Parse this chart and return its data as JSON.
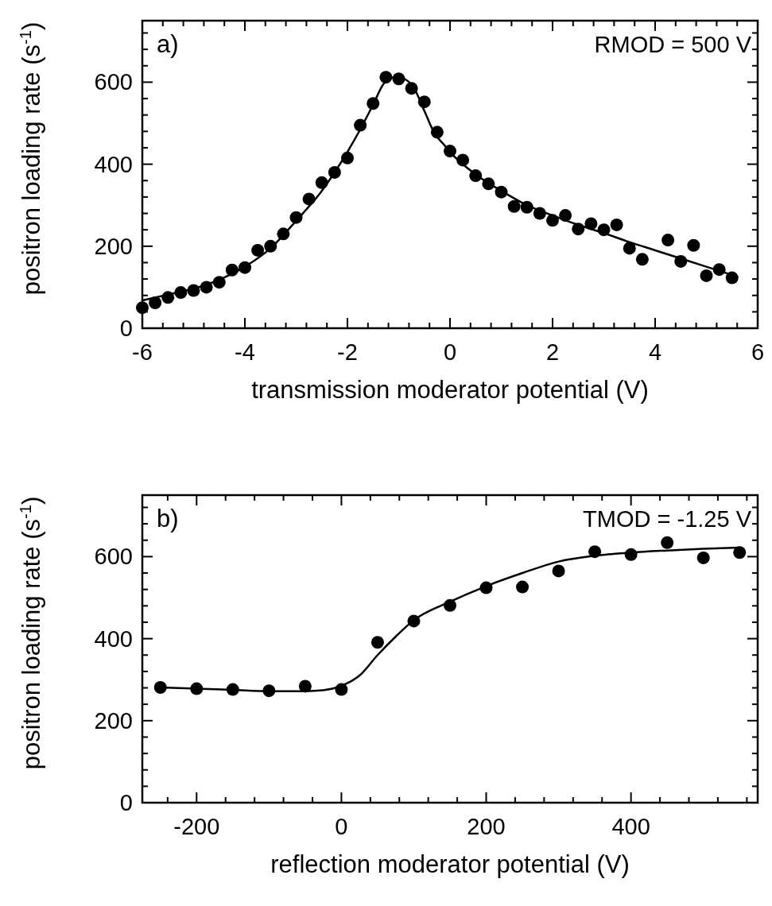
{
  "chart_data": [
    {
      "type": "scatter",
      "xlabel": "transmission moderator potential (V)",
      "ylabel": "positron loading rate (s$^{-1}$)",
      "annotations": [
        "a)",
        "RMOD = 500 V"
      ],
      "marker": "circle",
      "grid": false,
      "xlim": [
        -6,
        6
      ],
      "ylim": [
        0,
        750
      ],
      "xticks": [
        -6,
        {
          "value": -5.6,
          "label": null
        },
        {
          "value": -5.2,
          "label": null
        },
        {
          "value": -4.8,
          "label": null
        },
        {
          "value": -4.4,
          "label": null
        },
        -4,
        {
          "value": -3.6,
          "label": null
        },
        {
          "value": -3.2,
          "label": null
        },
        {
          "value": -2.8,
          "label": null
        },
        {
          "value": -2.4,
          "label": null
        },
        -2,
        {
          "value": -1.6,
          "label": null
        },
        {
          "value": -1.2,
          "label": null
        },
        {
          "value": -0.8,
          "label": null
        },
        {
          "value": -0.4,
          "label": null
        },
        0,
        {
          "value": 0.4,
          "label": null
        },
        {
          "value": 0.8,
          "label": null
        },
        {
          "value": 1.2,
          "label": null
        },
        {
          "value": 1.6,
          "label": null
        },
        2,
        {
          "value": 2.4,
          "label": null
        },
        {
          "value": 2.8,
          "label": null
        },
        {
          "value": 3.2,
          "label": null
        },
        {
          "value": 3.6,
          "label": null
        },
        4,
        {
          "value": 4.4,
          "label": null
        },
        {
          "value": 4.8,
          "label": null
        },
        {
          "value": 5.2,
          "label": null
        },
        {
          "value": 5.6,
          "label": null
        },
        6
      ],
      "yticks": [
        0,
        {
          "value": 40,
          "label": null
        },
        {
          "value": 80,
          "label": null
        },
        {
          "value": 120,
          "label": null
        },
        {
          "value": 160,
          "label": null
        },
        200,
        {
          "value": 240,
          "label": null
        },
        {
          "value": 280,
          "label": null
        },
        {
          "value": 320,
          "label": null
        },
        {
          "value": 360,
          "label": null
        },
        400,
        {
          "value": 440,
          "label": null
        },
        {
          "value": 480,
          "label": null
        },
        {
          "value": 520,
          "label": null
        },
        {
          "value": 560,
          "label": null
        },
        600,
        {
          "value": 640,
          "label": null
        },
        {
          "value": 680,
          "label": null
        },
        {
          "value": 720,
          "label": null
        }
      ],
      "series": [
        {
          "color": "#000000",
          "x": [
            -6,
            -5.75,
            -5.5,
            -5.25,
            -5,
            -4.75,
            -4.5,
            -4.25,
            -4,
            -3.75,
            -3.5,
            -3.25,
            -3,
            -2.75,
            -2.5,
            -2.25,
            -2,
            -1.75,
            -1.5,
            -1.25,
            -1,
            -0.75,
            -0.5,
            -0.25,
            0,
            0.25,
            0.5,
            0.75,
            1,
            1.25,
            1.5,
            1.75,
            2,
            2.25,
            2.5,
            2.75,
            3,
            3.25,
            3.5,
            3.75,
            4.25,
            4.5,
            4.75,
            5,
            5.25,
            5.5
          ],
          "values": [
            50,
            62,
            75,
            87,
            92,
            100,
            112,
            142,
            148,
            190,
            200,
            230,
            270,
            315,
            355,
            380,
            415,
            495,
            548,
            612,
            608,
            585,
            552,
            478,
            432,
            410,
            372,
            352,
            332,
            297,
            295,
            280,
            263,
            275,
            242,
            255,
            240,
            252,
            195,
            168,
            215,
            163,
            202,
            128,
            143,
            123
          ]
        },
        {
          "type": "line",
          "color": "#000000",
          "marker": "none",
          "line_style": "solid",
          "x": [
            -6,
            -5.5,
            -5,
            -4.5,
            -4,
            -3.5,
            -3,
            -2.5,
            -2,
            -1.75,
            -1.5,
            -1.3,
            -1.1,
            -0.9,
            -0.7,
            -0.5,
            -0.3,
            -0.1,
            0,
            0.5,
            1,
            1.5,
            2,
            2.5,
            3,
            3.5,
            4,
            4.5,
            5,
            5.5
          ],
          "values": [
            68,
            82,
            97,
            118,
            150,
            195,
            262,
            335,
            430,
            485,
            545,
            595,
            612,
            608,
            585,
            530,
            475,
            445,
            430,
            375,
            335,
            300,
            275,
            252,
            232,
            210,
            190,
            170,
            150,
            130
          ]
        }
      ]
    },
    {
      "type": "scatter",
      "xlabel": "reflection moderator potential (V)",
      "ylabel": "positron loading rate (s$^{-1}$)",
      "annotations": [
        "b)",
        "TMOD = -1.25 V"
      ],
      "marker": "circle",
      "grid": false,
      "xlim": [
        -275,
        575
      ],
      "ylim": [
        0,
        750
      ],
      "xticks": [
        {
          "value": -240,
          "label": null
        },
        -200,
        {
          "value": -160,
          "label": null
        },
        {
          "value": -120,
          "label": null
        },
        {
          "value": -80,
          "label": null
        },
        {
          "value": -40,
          "label": null
        },
        0,
        {
          "value": 40,
          "label": null
        },
        {
          "value": 80,
          "label": null
        },
        {
          "value": 120,
          "label": null
        },
        {
          "value": 160,
          "label": null
        },
        200,
        {
          "value": 240,
          "label": null
        },
        {
          "value": 280,
          "label": null
        },
        {
          "value": 320,
          "label": null
        },
        {
          "value": 360,
          "label": null
        },
        400,
        {
          "value": 440,
          "label": null
        },
        {
          "value": 480,
          "label": null
        },
        {
          "value": 520,
          "label": null
        },
        {
          "value": 560,
          "label": null
        }
      ],
      "yticks": [
        0,
        {
          "value": 40,
          "label": null
        },
        {
          "value": 80,
          "label": null
        },
        {
          "value": 120,
          "label": null
        },
        {
          "value": 160,
          "label": null
        },
        200,
        {
          "value": 240,
          "label": null
        },
        {
          "value": 280,
          "label": null
        },
        {
          "value": 320,
          "label": null
        },
        {
          "value": 360,
          "label": null
        },
        400,
        {
          "value": 440,
          "label": null
        },
        {
          "value": 480,
          "label": null
        },
        {
          "value": 520,
          "label": null
        },
        {
          "value": 560,
          "label": null
        },
        600,
        {
          "value": 640,
          "label": null
        },
        {
          "value": 680,
          "label": null
        },
        {
          "value": 720,
          "label": null
        }
      ],
      "series": [
        {
          "color": "#000000",
          "x": [
            -250,
            -200,
            -150,
            -100,
            -50,
            0,
            50,
            100,
            150,
            200,
            250,
            300,
            350,
            400,
            450,
            500,
            550
          ],
          "values": [
            281,
            278,
            276,
            273,
            284,
            276,
            391,
            443,
            481,
            524,
            526,
            565,
            612,
            605,
            634,
            597,
            610
          ]
        },
        {
          "type": "line",
          "color": "#000000",
          "marker": "none",
          "line_style": "solid",
          "x": [
            -250,
            -200,
            -150,
            -100,
            -50,
            -25,
            0,
            25,
            50,
            75,
            100,
            150,
            200,
            250,
            300,
            350,
            400,
            450,
            500,
            550
          ],
          "values": [
            281,
            278,
            275,
            272,
            272,
            274,
            285,
            310,
            360,
            405,
            445,
            490,
            528,
            560,
            588,
            602,
            610,
            615,
            619,
            622
          ]
        }
      ]
    }
  ]
}
